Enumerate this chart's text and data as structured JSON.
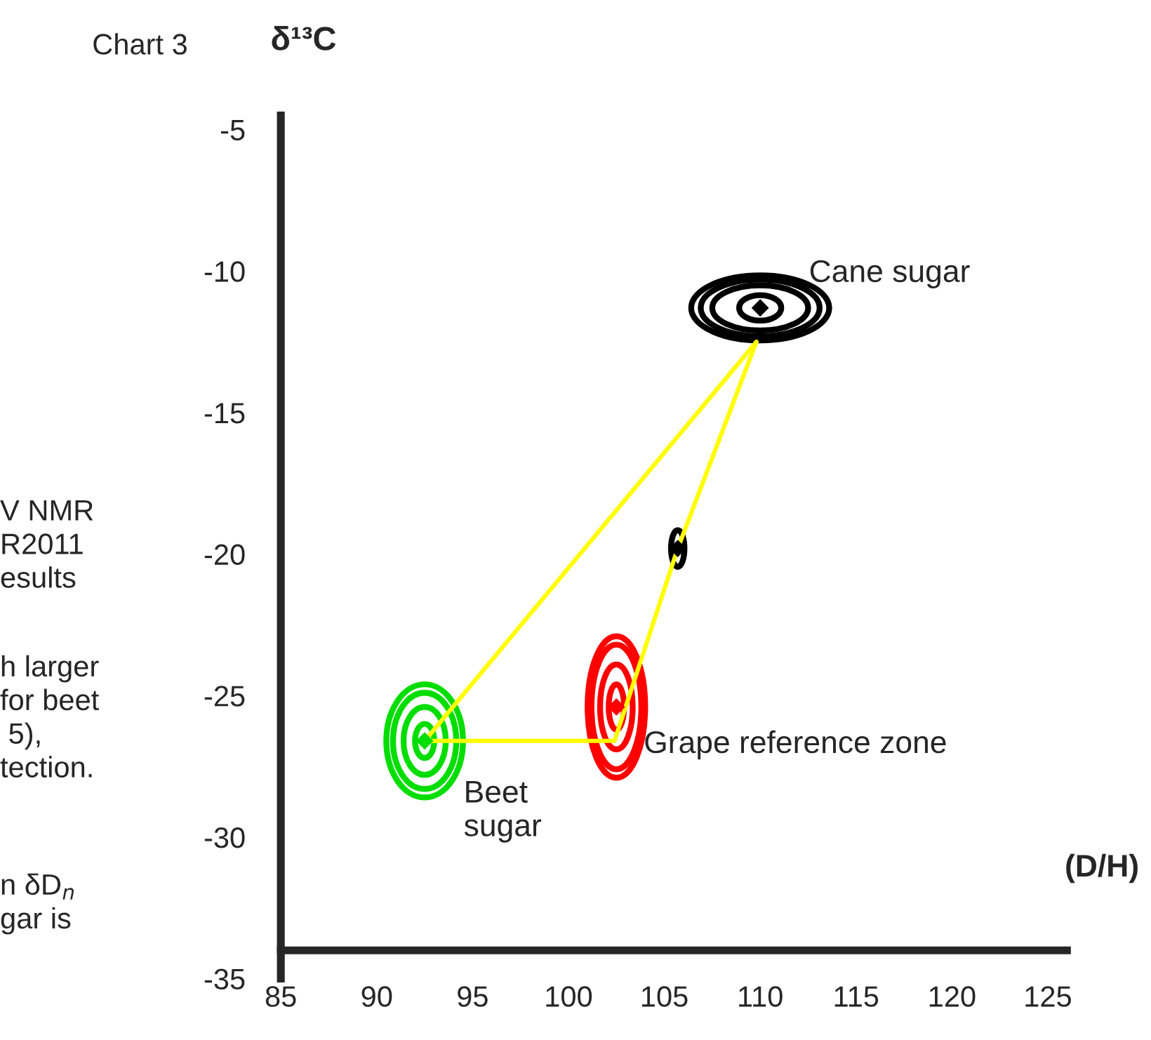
{
  "chart_data": {
    "type": "scatter",
    "title": "Chart 3",
    "ylabel": "δ¹³C",
    "xlabel": "(D/H)",
    "xlim": [
      85,
      126
    ],
    "ylim": [
      -35,
      -4.5
    ],
    "xticks": [
      85,
      90,
      95,
      100,
      105,
      110,
      115,
      120,
      125
    ],
    "yticks": [
      -35,
      -30,
      -25,
      -20,
      -15,
      -10,
      -5
    ],
    "grid": false,
    "legend": false,
    "series": [
      {
        "type": "line",
        "color": "#ffff00",
        "line_style": "solid",
        "x": [
          92.5,
          102.4,
          105.7,
          109.8
        ],
        "values": [
          -26.6,
          -26.6,
          -19.8,
          -12.5
        ]
      },
      {
        "type": "line",
        "color": "#ffff00",
        "line_style": "solid",
        "x": [
          92.5,
          109.8
        ],
        "values": [
          -26.6,
          -12.5
        ]
      },
      {
        "marker": "diamond",
        "colors": [
          "#000000",
          "#000000",
          "#ff0000",
          "#00dd00"
        ],
        "x": [
          110,
          105.7,
          102.5,
          92.5
        ],
        "values": [
          -11.3,
          -19.8,
          -25.4,
          -26.6
        ]
      }
    ],
    "annotations": [
      {
        "text": "Cane sugar",
        "x": 110,
        "y": -11.3
      },
      {
        "text": "Grape reference zone",
        "x": 102.5,
        "y": -25.4
      },
      {
        "text": "Beet\nsugar",
        "x": 92.5,
        "y": -26.6
      },
      "V NMR\nR2011\nesults",
      "h larger\nfor beet\n 5),\ntection.",
      "n δD$_{n}$\ngar is"
    ]
  }
}
